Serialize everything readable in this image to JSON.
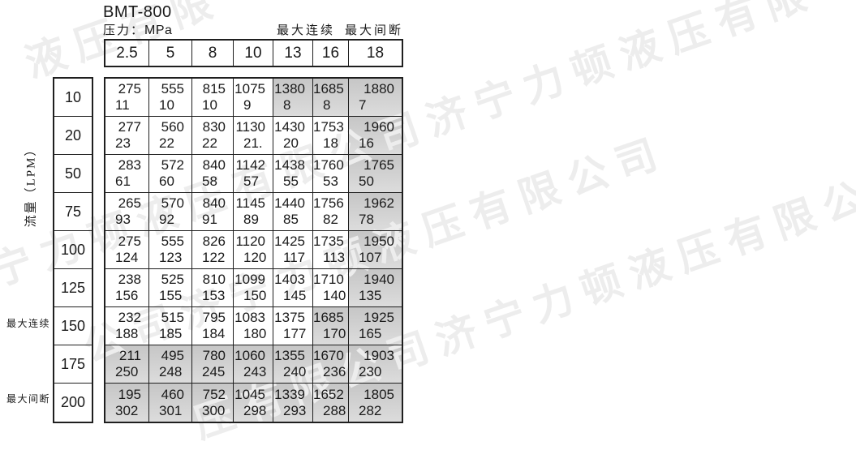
{
  "header": {
    "model": "BMT-800",
    "pressure_label": "压力：",
    "pressure_unit": "MPa",
    "legend_continuous": "最大连续",
    "legend_intermittent": "最大间断"
  },
  "left_labels": {
    "flow_axis": "流量（LPM）",
    "max_continuous": "最大连续",
    "max_intermittent": "最大间断"
  },
  "watermark": {
    "color": "#ededed",
    "lines": [
      "液压有限",
      "宁力顿液压有限公司济宁力顿液压有限",
      "公司济宁力顿液压有限公司",
      "压有限公司济宁力顿液压有限公司"
    ]
  },
  "chart_data": {
    "type": "table",
    "title": "BMT-800",
    "columns_pressure_mpa": [
      "2.5",
      "5",
      "8",
      "10",
      "13",
      "16",
      "18"
    ],
    "row_axis": "流量（LPM）",
    "shaded_color_top": "#c6c6c6",
    "shaded_color_bottom": "#dcdcdc",
    "rows": [
      {
        "flow_lpm": "10",
        "cells": [
          [
            "275",
            "11"
          ],
          [
            "555",
            "10"
          ],
          [
            "815",
            "10"
          ],
          [
            "1075",
            "9"
          ],
          [
            "1380",
            "8"
          ],
          [
            "1685",
            "8"
          ],
          [
            "1880",
            "7"
          ]
        ],
        "shaded_cols": [
          4,
          5,
          6
        ]
      },
      {
        "flow_lpm": "20",
        "cells": [
          [
            "277",
            "23"
          ],
          [
            "560",
            "22"
          ],
          [
            "830",
            "22"
          ],
          [
            "1130",
            "21."
          ],
          [
            "1430",
            "20"
          ],
          [
            "1753",
            "18"
          ],
          [
            "1960",
            "16"
          ]
        ],
        "shaded_cols": [
          6
        ]
      },
      {
        "flow_lpm": "50",
        "cells": [
          [
            "283",
            "61"
          ],
          [
            "572",
            "60"
          ],
          [
            "840",
            "58"
          ],
          [
            "1142",
            "57"
          ],
          [
            "1438",
            "55"
          ],
          [
            "1760",
            "53"
          ],
          [
            "1765",
            "50"
          ]
        ],
        "shaded_cols": [
          6
        ]
      },
      {
        "flow_lpm": "75",
        "cells": [
          [
            "265",
            "93"
          ],
          [
            "570",
            "92"
          ],
          [
            "840",
            "91"
          ],
          [
            "1145",
            "89"
          ],
          [
            "1440",
            "85"
          ],
          [
            "1756",
            "82"
          ],
          [
            "1962",
            "78"
          ]
        ],
        "shaded_cols": [
          6
        ]
      },
      {
        "flow_lpm": "100",
        "cells": [
          [
            "275",
            "124"
          ],
          [
            "555",
            "123"
          ],
          [
            "826",
            "122"
          ],
          [
            "1120",
            "120"
          ],
          [
            "1425",
            "117"
          ],
          [
            "1735",
            "113"
          ],
          [
            "1950",
            "107"
          ]
        ],
        "shaded_cols": [
          6
        ]
      },
      {
        "flow_lpm": "125",
        "cells": [
          [
            "238",
            "156"
          ],
          [
            "525",
            "155"
          ],
          [
            "810",
            "153"
          ],
          [
            "1099",
            "150"
          ],
          [
            "1403",
            "145"
          ],
          [
            "1710",
            "140"
          ],
          [
            "1940",
            "135"
          ]
        ],
        "shaded_cols": [
          6
        ]
      },
      {
        "flow_lpm": "150",
        "cells": [
          [
            "232",
            "188"
          ],
          [
            "515",
            "185"
          ],
          [
            "795",
            "184"
          ],
          [
            "1083",
            "180"
          ],
          [
            "1375",
            "177"
          ],
          [
            "1685",
            "170"
          ],
          [
            "1925",
            "165"
          ]
        ],
        "shaded_cols": [
          5,
          6
        ]
      },
      {
        "flow_lpm": "175",
        "cells": [
          [
            "211",
            "250"
          ],
          [
            "495",
            "248"
          ],
          [
            "780",
            "245"
          ],
          [
            "1060",
            "243"
          ],
          [
            "1355",
            "240"
          ],
          [
            "1670",
            "236"
          ],
          [
            "1903",
            "230"
          ]
        ],
        "shaded_cols": [
          0,
          1,
          2,
          3,
          4,
          5,
          6
        ]
      },
      {
        "flow_lpm": "200",
        "cells": [
          [
            "195",
            "302"
          ],
          [
            "460",
            "301"
          ],
          [
            "752",
            "300"
          ],
          [
            "1045",
            "298"
          ],
          [
            "1339",
            "293"
          ],
          [
            "1652",
            "288"
          ],
          [
            "1805",
            "282"
          ]
        ],
        "shaded_cols": [
          0,
          1,
          2,
          3,
          4,
          5,
          6
        ]
      }
    ]
  }
}
